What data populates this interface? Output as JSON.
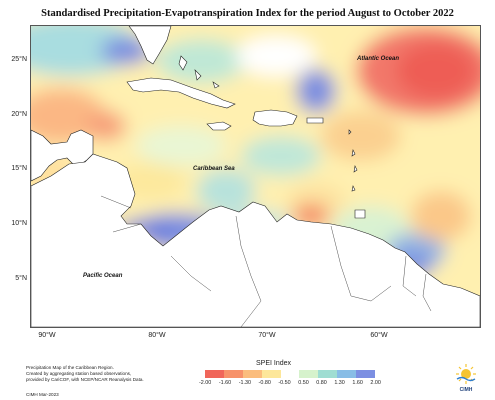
{
  "title": "Standardised Precipitation-Evapotranspiration Index for the period August to October 2022",
  "lat_labels": [
    "25°N",
    "20°N",
    "15°N",
    "10°N",
    "5°N"
  ],
  "lon_labels": [
    "90°W",
    "80°W",
    "70°W",
    "60°W"
  ],
  "places": {
    "atlantic": "Atlantic Ocean",
    "caribbean": "Caribbean Sea",
    "pacific": "Pacific Ocean"
  },
  "footer": {
    "line1": "Precipitation Map of the Caribbean Region.",
    "line2": "Created by aggregating station based observations,",
    "line3": "provided by CariCOF, with NCEP/NCAR Reanalysis Data.",
    "line4": "CIMH Mar-2023"
  },
  "legend": {
    "title": "SPEI Index",
    "ticks": [
      "-2.00",
      "-1.60",
      "-1.30",
      "-0.80",
      "-0.50",
      "0.50",
      "0.80",
      "1.30",
      "1.60",
      "2.00"
    ],
    "colors": [
      "#f0665a",
      "#f7926a",
      "#fbbd7d",
      "#fde79a",
      "#ffffff",
      "#d6f2cc",
      "#9fddd2",
      "#88bde6",
      "#7c8fe2"
    ]
  },
  "logo": {
    "text": "CIMH"
  }
}
